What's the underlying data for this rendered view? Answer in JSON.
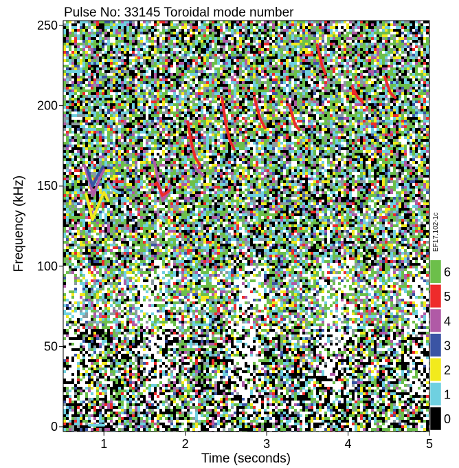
{
  "chart_data": {
    "type": "heatmap",
    "title": "Pulse No: 33145 Toroidal mode number",
    "xlabel": "Time (seconds)",
    "ylabel": "Frequency (kHz)",
    "xlim": [
      0.5,
      5.0
    ],
    "ylim": [
      -3,
      253
    ],
    "x_ticks": [
      "1",
      "2",
      "3",
      "4",
      "5"
    ],
    "y_ticks": [
      "0",
      "50",
      "100",
      "150",
      "200",
      "250"
    ],
    "colorbar": {
      "tag": "EF17.102-1c",
      "levels": [
        {
          "label": "0",
          "color": "#000000"
        },
        {
          "label": "1",
          "color": "#6fd0e0"
        },
        {
          "label": "2",
          "color": "#f2ea1d"
        },
        {
          "label": "3",
          "color": "#3a54a4"
        },
        {
          "label": "4",
          "color": "#b05aa6"
        },
        {
          "label": "5",
          "color": "#ee2b2b"
        },
        {
          "label": "6",
          "color": "#6cbf4a"
        }
      ]
    },
    "mode_traces": [
      {
        "mode": "2",
        "points": [
          [
            0.78,
            145
          ],
          [
            0.82,
            137
          ],
          [
            0.86,
            129
          ],
          [
            0.94,
            139
          ],
          [
            1.0,
            146
          ],
          [
            1.05,
            141
          ]
        ]
      },
      {
        "mode": "4",
        "points": [
          [
            0.76,
            163
          ],
          [
            0.82,
            153
          ],
          [
            0.87,
            144
          ],
          [
            0.95,
            155
          ],
          [
            1.0,
            160
          ]
        ]
      },
      {
        "mode": "3",
        "points": [
          [
            0.8,
            160
          ],
          [
            0.86,
            150
          ],
          [
            0.93,
            157
          ],
          [
            0.99,
            162
          ]
        ]
      },
      {
        "mode": "1",
        "points": [
          [
            1.05,
            152
          ],
          [
            1.1,
            148
          ],
          [
            1.18,
            146
          ]
        ]
      },
      {
        "mode": "4",
        "points": [
          [
            1.62,
            165
          ],
          [
            1.68,
            150
          ],
          [
            1.72,
            141
          ],
          [
            1.78,
            145
          ],
          [
            1.82,
            150
          ]
        ]
      },
      {
        "mode": "5",
        "points": [
          [
            1.65,
            152
          ],
          [
            1.72,
            144
          ],
          [
            1.8,
            147
          ]
        ]
      },
      {
        "mode": "1",
        "points": [
          [
            1.7,
            131
          ],
          [
            1.74,
            128
          ]
        ]
      },
      {
        "mode": "5",
        "points": [
          [
            2.03,
            190
          ],
          [
            2.07,
            178
          ],
          [
            2.12,
            168
          ],
          [
            2.18,
            163
          ]
        ]
      },
      {
        "mode": "4",
        "points": [
          [
            2.1,
            163
          ],
          [
            2.16,
            159
          ],
          [
            2.22,
            157
          ]
        ]
      },
      {
        "mode": "5",
        "points": [
          [
            2.45,
            205
          ],
          [
            2.5,
            188
          ],
          [
            2.55,
            178
          ],
          [
            2.6,
            173
          ]
        ]
      },
      {
        "mode": "5",
        "points": [
          [
            2.85,
            205
          ],
          [
            2.92,
            192
          ],
          [
            2.98,
            186
          ]
        ]
      },
      {
        "mode": "5",
        "points": [
          [
            3.28,
            200
          ],
          [
            3.35,
            188
          ],
          [
            3.4,
            185
          ]
        ]
      },
      {
        "mode": "5",
        "points": [
          [
            3.62,
            238
          ],
          [
            3.68,
            225
          ],
          [
            3.72,
            220
          ]
        ]
      },
      {
        "mode": "5",
        "points": [
          [
            4.05,
            212
          ],
          [
            4.12,
            205
          ],
          [
            4.18,
            202
          ]
        ]
      },
      {
        "mode": "5",
        "points": [
          [
            4.45,
            218
          ],
          [
            4.52,
            208
          ],
          [
            4.58,
            205
          ]
        ]
      },
      {
        "mode": "1",
        "points": [
          [
            0.82,
            1
          ],
          [
            1.0,
            1
          ]
        ]
      }
    ]
  }
}
